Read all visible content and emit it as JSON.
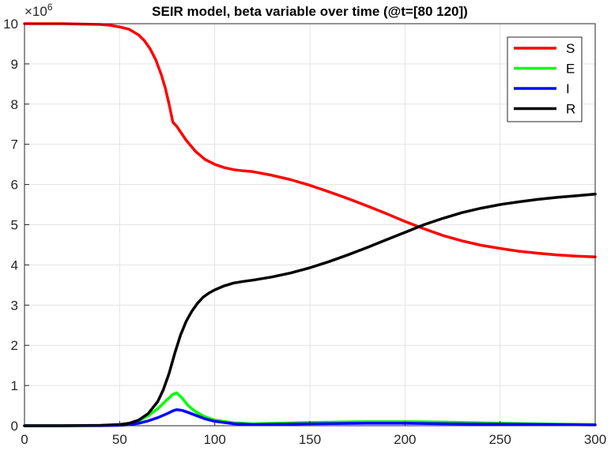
{
  "chart_data": {
    "type": "line",
    "title": "SEIR model, beta variable over time (@t=[80 120])",
    "xlabel": "",
    "ylabel": "",
    "exponent_label": {
      "base": "×10",
      "power": "6"
    },
    "xlim": [
      0,
      300
    ],
    "ylim": [
      0,
      10
    ],
    "x_ticks": [
      0,
      50,
      100,
      150,
      200,
      250,
      300
    ],
    "y_ticks": [
      0,
      1,
      2,
      3,
      4,
      5,
      6,
      7,
      8,
      9,
      10
    ],
    "grid": true,
    "legend_position": "top-right",
    "series": [
      {
        "name": "S",
        "color": "#ff0000",
        "x": [
          0,
          10,
          20,
          30,
          40,
          45,
          50,
          55,
          60,
          63,
          66,
          69,
          72,
          74,
          76,
          78,
          80,
          85,
          90,
          95,
          100,
          105,
          110,
          115,
          120,
          130,
          140,
          150,
          160,
          170,
          180,
          190,
          200,
          210,
          220,
          230,
          240,
          250,
          260,
          270,
          280,
          290,
          300
        ],
        "values": [
          10.0,
          10.0,
          10.0,
          9.99,
          9.98,
          9.96,
          9.92,
          9.86,
          9.72,
          9.58,
          9.38,
          9.1,
          8.72,
          8.4,
          8.0,
          7.55,
          7.45,
          7.1,
          6.82,
          6.62,
          6.5,
          6.42,
          6.37,
          6.34,
          6.32,
          6.23,
          6.12,
          5.98,
          5.82,
          5.65,
          5.47,
          5.28,
          5.08,
          4.9,
          4.73,
          4.6,
          4.49,
          4.41,
          4.34,
          4.29,
          4.25,
          4.22,
          4.2
        ]
      },
      {
        "name": "E",
        "color": "#00ff00",
        "x": [
          0,
          20,
          40,
          50,
          55,
          60,
          65,
          70,
          75,
          78,
          80,
          83,
          86,
          90,
          95,
          100,
          110,
          120,
          150,
          180,
          200,
          220,
          250,
          280,
          300
        ],
        "values": [
          0.0,
          0.0,
          0.005,
          0.02,
          0.05,
          0.12,
          0.25,
          0.42,
          0.65,
          0.78,
          0.82,
          0.68,
          0.5,
          0.35,
          0.22,
          0.14,
          0.07,
          0.05,
          0.08,
          0.1,
          0.1,
          0.09,
          0.06,
          0.04,
          0.03
        ]
      },
      {
        "name": "I",
        "color": "#0000ff",
        "x": [
          0,
          20,
          40,
          50,
          55,
          60,
          65,
          70,
          75,
          78,
          80,
          83,
          86,
          90,
          95,
          100,
          110,
          120,
          150,
          180,
          200,
          220,
          250,
          280,
          300
        ],
        "values": [
          0.0,
          0.0,
          0.002,
          0.01,
          0.025,
          0.06,
          0.12,
          0.2,
          0.3,
          0.37,
          0.4,
          0.38,
          0.33,
          0.26,
          0.17,
          0.11,
          0.05,
          0.03,
          0.05,
          0.06,
          0.06,
          0.05,
          0.04,
          0.03,
          0.02
        ]
      },
      {
        "name": "R",
        "color": "#000000",
        "x": [
          0,
          20,
          40,
          50,
          55,
          60,
          65,
          70,
          73,
          76,
          79,
          82,
          85,
          88,
          91,
          94,
          97,
          100,
          105,
          110,
          115,
          120,
          130,
          140,
          150,
          160,
          170,
          180,
          190,
          200,
          210,
          220,
          230,
          240,
          250,
          260,
          270,
          280,
          290,
          300
        ],
        "values": [
          0.0,
          0.0,
          0.01,
          0.03,
          0.06,
          0.14,
          0.3,
          0.6,
          0.9,
          1.3,
          1.8,
          2.25,
          2.6,
          2.85,
          3.05,
          3.2,
          3.3,
          3.38,
          3.48,
          3.55,
          3.59,
          3.62,
          3.7,
          3.8,
          3.93,
          4.08,
          4.25,
          4.43,
          4.62,
          4.81,
          5.0,
          5.16,
          5.3,
          5.41,
          5.5,
          5.57,
          5.63,
          5.68,
          5.72,
          5.76
        ]
      }
    ]
  }
}
